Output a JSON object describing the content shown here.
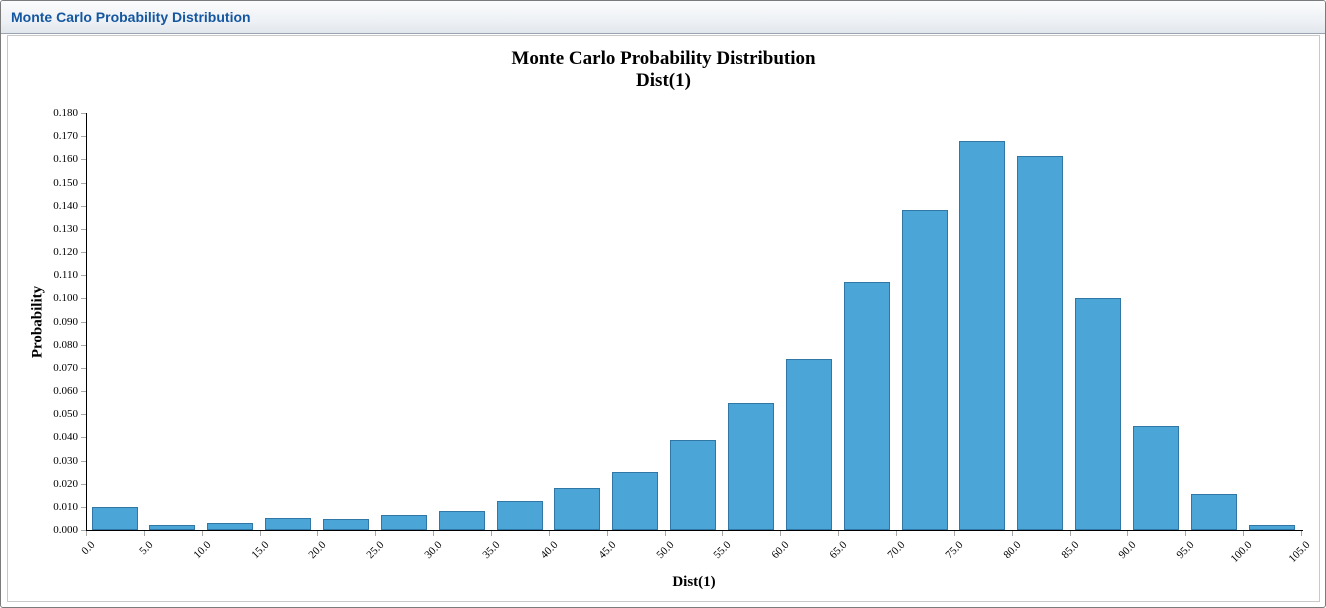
{
  "window": {
    "title": "Monte Carlo Probability Distribution"
  },
  "colors": {
    "header_title": "#1457a0",
    "bar_fill": "#4ba5d7",
    "bar_border": "#3177a6",
    "axis": "#000000",
    "tick": "#a8a8a8"
  },
  "chart_data": {
    "type": "bar",
    "title": "Monte Carlo Probability Distribution",
    "subtitle": "Dist(1)",
    "xlabel": "Dist(1)",
    "ylabel": "Probability",
    "ylim": [
      0.0,
      0.18
    ],
    "y_tick_step": 0.01,
    "grid": false,
    "legend": "none",
    "y_tick_labels": [
      "0.000",
      "0.010",
      "0.020",
      "0.030",
      "0.040",
      "0.050",
      "0.060",
      "0.070",
      "0.080",
      "0.090",
      "0.100",
      "0.110",
      "0.120",
      "0.130",
      "0.140",
      "0.150",
      "0.160",
      "0.170",
      "0.180"
    ],
    "x_tick_labels": [
      "0.0",
      "5.0",
      "10.0",
      "15.0",
      "20.0",
      "25.0",
      "30.0",
      "35.0",
      "40.0",
      "45.0",
      "50.0",
      "55.0",
      "60.0",
      "65.0",
      "70.0",
      "75.0",
      "80.0",
      "85.0",
      "90.0",
      "95.0",
      "100.0",
      "105.0"
    ],
    "bin_edges": [
      0,
      5,
      10,
      15,
      20,
      25,
      30,
      35,
      40,
      45,
      50,
      55,
      60,
      65,
      70,
      75,
      80,
      85,
      90,
      95,
      100,
      105
    ],
    "categories": [
      "0-5",
      "5-10",
      "10-15",
      "15-20",
      "20-25",
      "25-30",
      "30-35",
      "35-40",
      "40-45",
      "45-50",
      "50-55",
      "55-60",
      "60-65",
      "65-70",
      "70-75",
      "75-80",
      "80-85",
      "85-90",
      "90-95",
      "95-100",
      "100-105"
    ],
    "values": [
      0.01,
      0.002,
      0.003,
      0.0052,
      0.0047,
      0.0063,
      0.008,
      0.0124,
      0.018,
      0.025,
      0.039,
      0.055,
      0.074,
      0.107,
      0.138,
      0.168,
      0.1615,
      0.1,
      0.045,
      0.0155,
      0.0022
    ]
  }
}
